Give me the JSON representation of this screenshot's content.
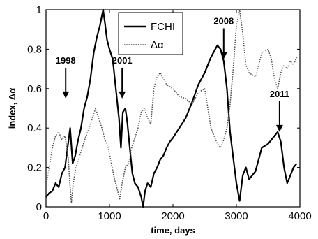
{
  "chart_data": {
    "type": "line",
    "xlabel": "time, days",
    "ylabel": "index, Δα",
    "xlim": [
      0,
      4000
    ],
    "ylim": [
      0,
      1
    ],
    "x_ticks": [
      "0",
      "1000",
      "2000",
      "3000",
      "4000"
    ],
    "y_ticks": [
      "0",
      "0.2",
      "0.4",
      "0.6",
      "0.8",
      "1"
    ],
    "grid": false,
    "legend_position": "top-center",
    "series": [
      {
        "name": "FCHI",
        "style": "solid",
        "color": "#000000",
        "points": [
          [
            0,
            0.05
          ],
          [
            50,
            0.07
          ],
          [
            100,
            0.08
          ],
          [
            150,
            0.12
          ],
          [
            200,
            0.1
          ],
          [
            250,
            0.17
          ],
          [
            300,
            0.2
          ],
          [
            340,
            0.3
          ],
          [
            380,
            0.4
          ],
          [
            420,
            0.22
          ],
          [
            460,
            0.26
          ],
          [
            500,
            0.33
          ],
          [
            550,
            0.4
          ],
          [
            600,
            0.5
          ],
          [
            650,
            0.56
          ],
          [
            700,
            0.65
          ],
          [
            750,
            0.78
          ],
          [
            800,
            0.86
          ],
          [
            850,
            0.92
          ],
          [
            900,
            1.0
          ],
          [
            930,
            0.93
          ],
          [
            960,
            0.85
          ],
          [
            1000,
            0.8
          ],
          [
            1050,
            0.75
          ],
          [
            1100,
            0.6
          ],
          [
            1150,
            0.45
          ],
          [
            1180,
            0.3
          ],
          [
            1210,
            0.48
          ],
          [
            1250,
            0.5
          ],
          [
            1280,
            0.43
          ],
          [
            1320,
            0.3
          ],
          [
            1360,
            0.17
          ],
          [
            1400,
            0.12
          ],
          [
            1450,
            0.1
          ],
          [
            1500,
            0.05
          ],
          [
            1530,
            0.0
          ],
          [
            1560,
            0.08
          ],
          [
            1600,
            0.12
          ],
          [
            1650,
            0.1
          ],
          [
            1700,
            0.17
          ],
          [
            1750,
            0.2
          ],
          [
            1800,
            0.24
          ],
          [
            1850,
            0.26
          ],
          [
            1900,
            0.3
          ],
          [
            1950,
            0.33
          ],
          [
            2000,
            0.35
          ],
          [
            2100,
            0.4
          ],
          [
            2200,
            0.45
          ],
          [
            2300,
            0.53
          ],
          [
            2400,
            0.62
          ],
          [
            2500,
            0.68
          ],
          [
            2600,
            0.76
          ],
          [
            2700,
            0.82
          ],
          [
            2750,
            0.8
          ],
          [
            2800,
            0.74
          ],
          [
            2850,
            0.6
          ],
          [
            2900,
            0.38
          ],
          [
            2950,
            0.25
          ],
          [
            3000,
            0.12
          ],
          [
            3050,
            0.03
          ],
          [
            3100,
            0.16
          ],
          [
            3150,
            0.2
          ],
          [
            3200,
            0.14
          ],
          [
            3300,
            0.18
          ],
          [
            3400,
            0.3
          ],
          [
            3500,
            0.32
          ],
          [
            3600,
            0.36
          ],
          [
            3650,
            0.38
          ],
          [
            3700,
            0.33
          ],
          [
            3750,
            0.2
          ],
          [
            3800,
            0.12
          ],
          [
            3850,
            0.16
          ],
          [
            3900,
            0.2
          ],
          [
            3950,
            0.22
          ]
        ]
      },
      {
        "name": "Δα",
        "style": "dotted",
        "color": "#555555",
        "points": [
          [
            0,
            0.1
          ],
          [
            50,
            0.2
          ],
          [
            100,
            0.3
          ],
          [
            150,
            0.36
          ],
          [
            200,
            0.38
          ],
          [
            250,
            0.34
          ],
          [
            300,
            0.36
          ],
          [
            350,
            0.25
          ],
          [
            380,
            0.1
          ],
          [
            400,
            0.02
          ],
          [
            430,
            0.12
          ],
          [
            470,
            0.2
          ],
          [
            520,
            0.25
          ],
          [
            570,
            0.3
          ],
          [
            620,
            0.35
          ],
          [
            680,
            0.4
          ],
          [
            730,
            0.45
          ],
          [
            780,
            0.5
          ],
          [
            830,
            0.45
          ],
          [
            880,
            0.4
          ],
          [
            930,
            0.34
          ],
          [
            980,
            0.3
          ],
          [
            1030,
            0.22
          ],
          [
            1080,
            0.14
          ],
          [
            1130,
            0.08
          ],
          [
            1160,
            0.04
          ],
          [
            1200,
            0.12
          ],
          [
            1250,
            0.2
          ],
          [
            1300,
            0.22
          ],
          [
            1350,
            0.3
          ],
          [
            1400,
            0.35
          ],
          [
            1450,
            0.4
          ],
          [
            1500,
            0.48
          ],
          [
            1550,
            0.5
          ],
          [
            1600,
            0.45
          ],
          [
            1650,
            0.42
          ],
          [
            1700,
            0.6
          ],
          [
            1750,
            0.66
          ],
          [
            1800,
            0.68
          ],
          [
            1900,
            0.62
          ],
          [
            2000,
            0.6
          ],
          [
            2100,
            0.56
          ],
          [
            2200,
            0.55
          ],
          [
            2300,
            0.52
          ],
          [
            2400,
            0.58
          ],
          [
            2500,
            0.6
          ],
          [
            2600,
            0.4
          ],
          [
            2650,
            0.36
          ],
          [
            2700,
            0.32
          ],
          [
            2750,
            0.3
          ],
          [
            2800,
            0.34
          ],
          [
            2850,
            0.4
          ],
          [
            2900,
            0.52
          ],
          [
            2950,
            0.7
          ],
          [
            3000,
            0.92
          ],
          [
            3050,
            1.0
          ],
          [
            3100,
            0.88
          ],
          [
            3150,
            0.72
          ],
          [
            3200,
            0.68
          ],
          [
            3300,
            0.66
          ],
          [
            3400,
            0.78
          ],
          [
            3500,
            0.8
          ],
          [
            3550,
            0.75
          ],
          [
            3600,
            0.65
          ],
          [
            3650,
            0.6
          ],
          [
            3700,
            0.68
          ],
          [
            3750,
            0.72
          ],
          [
            3800,
            0.7
          ],
          [
            3850,
            0.74
          ],
          [
            3900,
            0.72
          ],
          [
            3950,
            0.76
          ]
        ]
      }
    ],
    "annotations": [
      {
        "label": "1998",
        "x": 310,
        "y": 0.55
      },
      {
        "label": "2001",
        "x": 1200,
        "y": 0.55
      },
      {
        "label": "2008",
        "x": 2800,
        "y": 0.75
      },
      {
        "label": "2011",
        "x": 3680,
        "y": 0.38
      }
    ]
  }
}
